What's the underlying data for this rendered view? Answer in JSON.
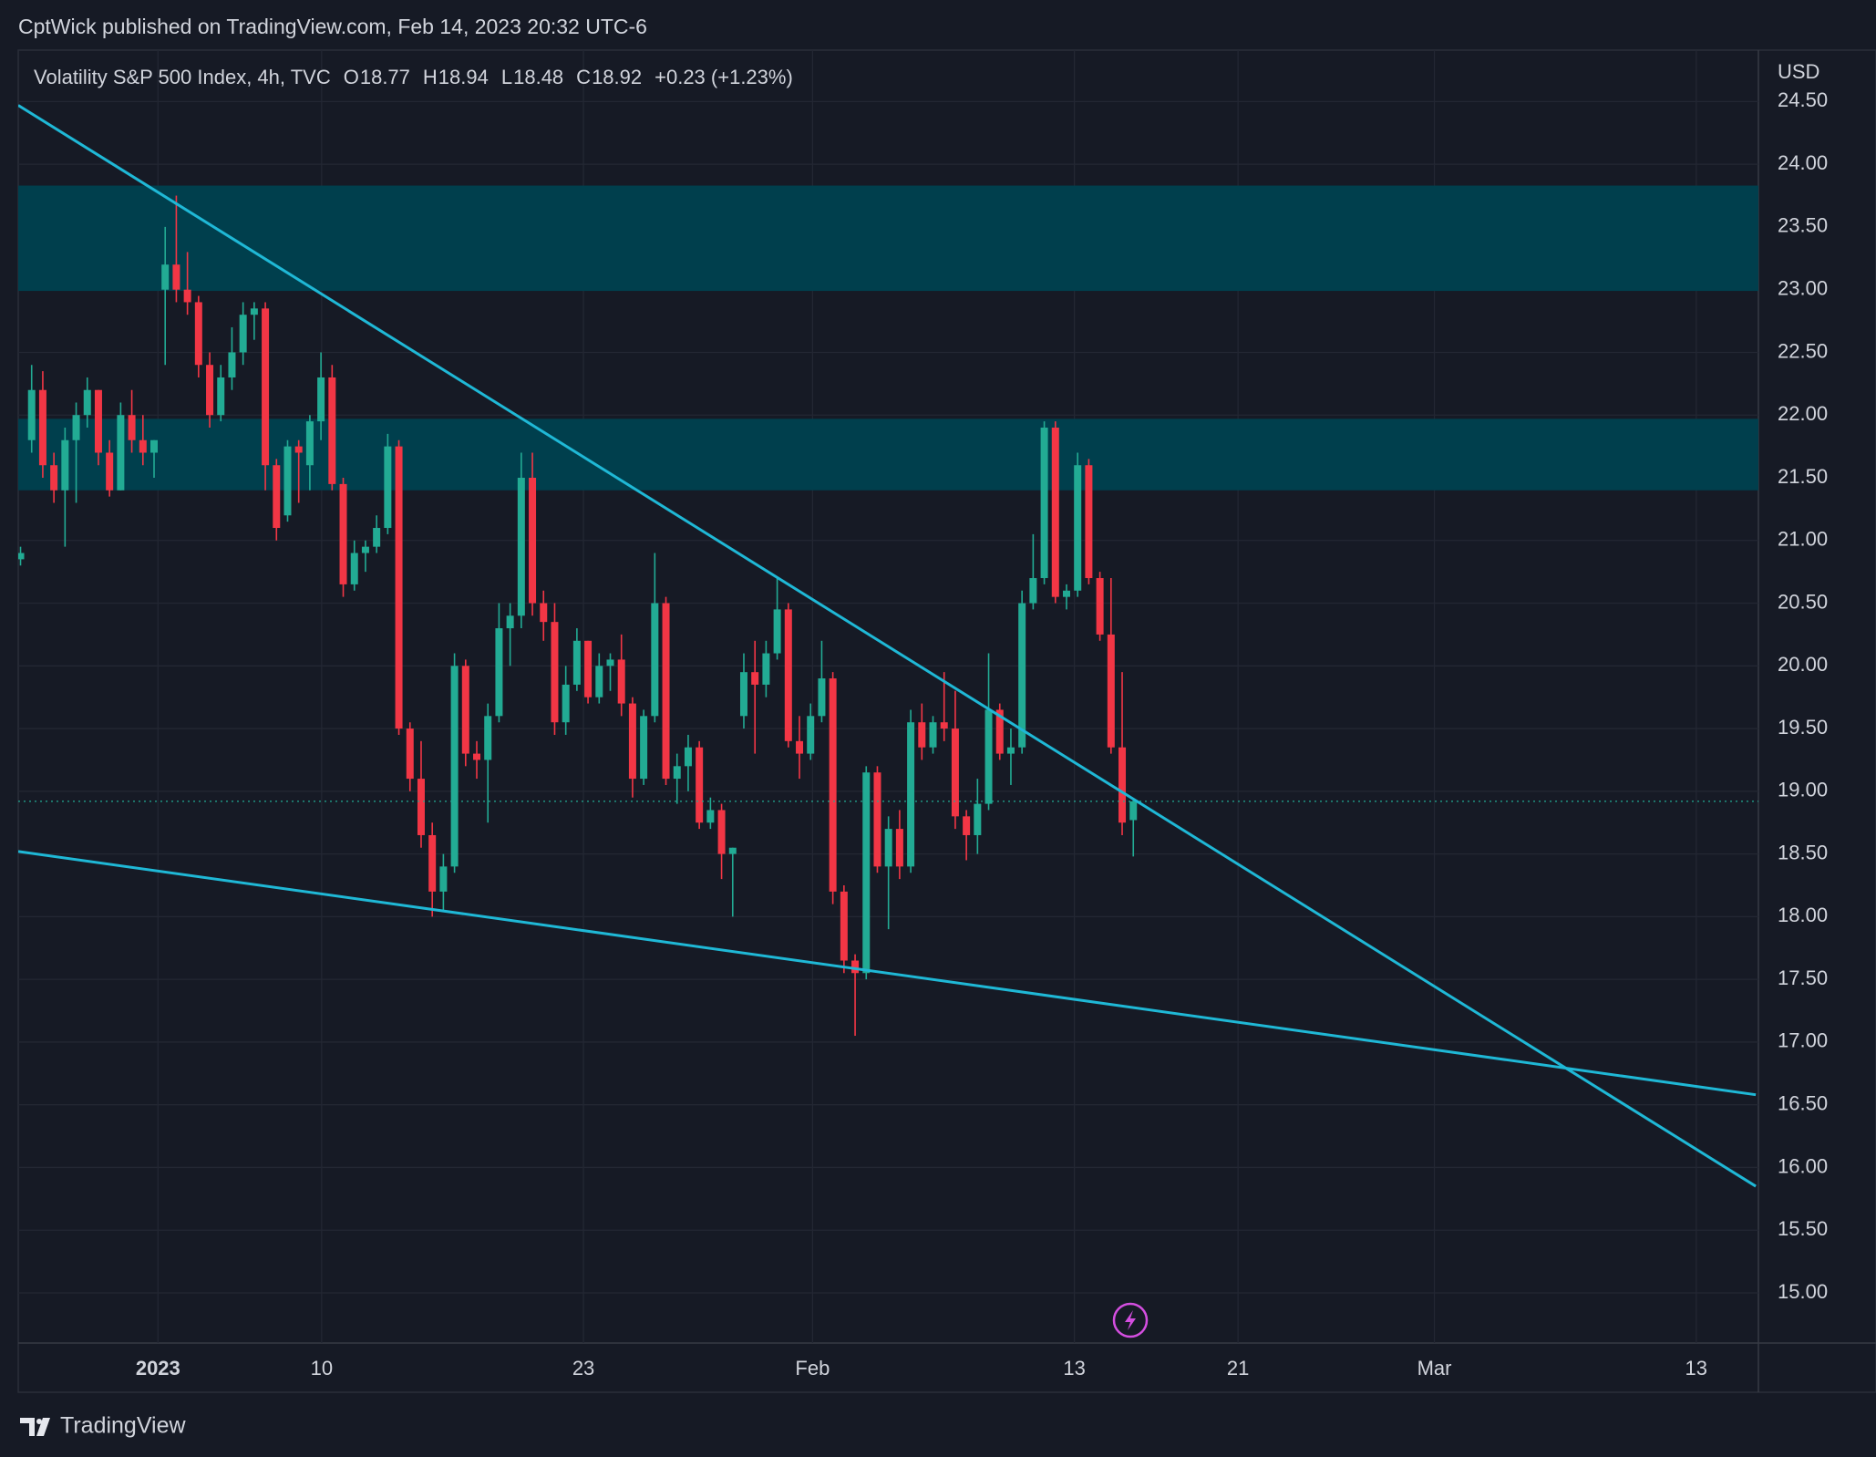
{
  "header": "CptWick published on TradingView.com, Feb 14, 2023 20:32 UTC-6",
  "footer": "TradingView",
  "chart_data": {
    "type": "candlestick",
    "legend": {
      "name": "Volatility S&P 500 Index, 4h, TVC",
      "fields": [
        {
          "label": "O",
          "value": 18.77
        },
        {
          "label": "H",
          "value": 18.94
        },
        {
          "label": "L",
          "value": 18.48
        },
        {
          "label": "C",
          "value": 18.92
        }
      ],
      "change": "+0.23 (+1.23%)"
    },
    "y_axis_label": "USD",
    "up_color": "#22ab94",
    "down_color": "#f23645",
    "xlim": [
      -4.27,
      48.9
    ],
    "ylim": [
      14.6,
      24.91
    ],
    "xticks": [
      {
        "value": 0,
        "label": "2023"
      },
      {
        "value": 5,
        "label": "10"
      },
      {
        "value": 13,
        "label": "23"
      },
      {
        "value": 20,
        "label": "Feb"
      },
      {
        "value": 28,
        "label": "13"
      },
      {
        "value": 33,
        "label": "21"
      },
      {
        "value": 39,
        "label": "Mar"
      },
      {
        "value": 47,
        "label": "13"
      }
    ],
    "yticks": [
      {
        "value": 15,
        "label": "15.00"
      },
      {
        "value": 15.5,
        "label": "15.50"
      },
      {
        "value": 16,
        "label": "16.00"
      },
      {
        "value": 16.5,
        "label": "16.50"
      },
      {
        "value": 17,
        "label": "17.00"
      },
      {
        "value": 17.5,
        "label": "17.50"
      },
      {
        "value": 18,
        "label": "18.00"
      },
      {
        "value": 18.5,
        "label": "18.50"
      },
      {
        "value": 19,
        "label": "19.00"
      },
      {
        "value": 19.5,
        "label": "19.50"
      },
      {
        "value": 20,
        "label": "20.00"
      },
      {
        "value": 20.5,
        "label": "20.50"
      },
      {
        "value": 21,
        "label": "21.00"
      },
      {
        "value": 21.5,
        "label": "21.50"
      },
      {
        "value": 22,
        "label": "22.00"
      },
      {
        "value": 22.5,
        "label": "22.50"
      },
      {
        "value": 23,
        "label": "23.00"
      },
      {
        "value": 23.5,
        "label": "23.50"
      },
      {
        "value": 24,
        "label": "24.00"
      },
      {
        "value": 24.5,
        "label": "24.50"
      }
    ],
    "grid": true,
    "zones": [
      {
        "color": "#003f4d",
        "y": [
          22.99,
          23.83
        ]
      },
      {
        "color": "#003f4d",
        "y": [
          21.4,
          21.97
        ]
      }
    ],
    "lines": [
      {
        "color": "#1fb8d6",
        "x": [
          -4.27,
          48.82
        ],
        "y": [
          24.47,
          15.85
        ]
      },
      {
        "color": "#1fb8d6",
        "x": [
          -4.27,
          48.82
        ],
        "y": [
          18.52,
          16.58
        ]
      }
    ],
    "series": [
      {
        "x": [
          -4.2,
          -3.86,
          -3.52,
          -3.18,
          -2.84,
          -2.5,
          -2.16,
          -1.82,
          -1.48,
          -1.14,
          -0.8,
          -0.46,
          -0.12,
          0.22,
          0.56,
          0.9,
          1.24,
          1.58,
          1.92,
          2.26,
          2.6,
          2.94,
          3.28,
          3.62,
          3.96,
          4.3,
          4.64,
          4.98,
          5.32,
          5.66,
          6.0,
          6.34,
          6.68,
          7.02,
          7.36,
          7.7,
          8.04,
          8.38,
          8.72,
          9.06,
          9.4,
          9.74,
          10.08,
          10.42,
          10.76,
          11.1,
          11.44,
          11.78,
          12.12,
          12.46,
          12.8,
          13.14,
          13.48,
          13.82,
          14.16,
          14.5,
          14.84,
          15.18,
          15.52,
          15.86,
          16.2,
          16.54,
          16.88,
          17.22,
          17.56,
          17.9,
          18.24,
          18.58,
          18.92,
          19.26,
          19.6,
          19.94,
          20.28,
          20.62,
          20.96,
          21.3,
          21.64,
          21.98,
          22.32,
          22.66,
          23.0,
          23.34,
          23.68,
          24.02,
          24.36,
          24.7,
          25.04,
          25.38,
          25.72,
          26.06,
          26.4,
          26.74,
          27.08,
          27.42,
          27.76,
          28.1,
          28.44,
          28.78,
          29.12,
          29.46,
          29.8
        ],
        "open": [
          20.85,
          21.8,
          22.2,
          21.6,
          21.4,
          21.8,
          22.0,
          22.2,
          21.7,
          21.4,
          22.0,
          21.8,
          21.7,
          23.0,
          23.2,
          23.0,
          22.9,
          22.4,
          22.0,
          22.3,
          22.5,
          22.8,
          22.85,
          21.6,
          21.2,
          21.75,
          21.6,
          21.95,
          22.3,
          21.45,
          20.65,
          20.9,
          20.95,
          21.1,
          21.75,
          19.5,
          19.1,
          18.65,
          18.2,
          18.4,
          20.0,
          19.3,
          19.25,
          19.6,
          20.3,
          20.4,
          21.5,
          20.5,
          20.35,
          19.55,
          19.85,
          20.2,
          19.75,
          20.0,
          20.05,
          19.7,
          19.1,
          19.6,
          20.5,
          19.1,
          19.2,
          19.35,
          18.75,
          18.85,
          18.5,
          19.6,
          19.95,
          19.85,
          20.1,
          20.45,
          19.4,
          19.3,
          19.6,
          19.9,
          18.2,
          17.65,
          17.55,
          19.15,
          18.4,
          18.7,
          18.4,
          19.55,
          19.35,
          19.55,
          19.5,
          18.8,
          18.65,
          18.9,
          19.65,
          19.3,
          19.35,
          20.5,
          20.7,
          21.9,
          20.55,
          20.6,
          21.6,
          20.7,
          20.25,
          19.35,
          18.77
        ],
        "high": [
          20.95,
          22.4,
          22.35,
          21.7,
          21.9,
          22.1,
          22.3,
          22.2,
          21.8,
          22.1,
          22.2,
          22.0,
          21.8,
          23.5,
          23.75,
          23.3,
          22.95,
          22.5,
          22.4,
          22.7,
          22.9,
          22.9,
          22.9,
          21.65,
          21.8,
          21.8,
          22.0,
          22.5,
          22.4,
          21.5,
          21.0,
          21.0,
          21.2,
          21.85,
          21.8,
          19.55,
          19.4,
          18.75,
          18.5,
          20.1,
          20.05,
          19.4,
          19.7,
          20.5,
          20.5,
          21.7,
          21.7,
          20.6,
          20.5,
          20.0,
          20.3,
          20.2,
          20.1,
          20.1,
          20.25,
          19.75,
          19.65,
          20.9,
          20.55,
          19.3,
          19.45,
          19.4,
          18.95,
          18.9,
          18.55,
          20.1,
          20.2,
          20.2,
          20.7,
          20.5,
          19.6,
          19.7,
          20.2,
          19.95,
          18.25,
          17.7,
          19.2,
          19.2,
          18.8,
          18.85,
          19.65,
          19.7,
          19.6,
          19.95,
          19.8,
          18.85,
          19.1,
          20.1,
          19.7,
          19.5,
          20.6,
          21.05,
          21.95,
          21.95,
          20.65,
          21.7,
          21.65,
          20.75,
          20.7,
          19.95,
          18.94
        ],
        "low": [
          20.8,
          21.7,
          21.5,
          21.3,
          20.95,
          21.3,
          21.9,
          21.6,
          21.35,
          21.4,
          21.7,
          21.6,
          21.5,
          22.4,
          22.9,
          22.8,
          22.3,
          21.9,
          21.95,
          22.2,
          22.4,
          22.6,
          21.4,
          21.0,
          21.15,
          21.3,
          21.4,
          21.8,
          21.4,
          20.55,
          20.6,
          20.75,
          20.9,
          21.05,
          19.45,
          19.0,
          18.55,
          18.0,
          18.05,
          18.35,
          19.2,
          19.1,
          18.75,
          19.55,
          20.0,
          20.3,
          20.4,
          20.2,
          19.45,
          19.45,
          19.8,
          19.7,
          19.7,
          19.8,
          19.6,
          18.95,
          19.05,
          19.55,
          19.05,
          18.9,
          19.0,
          18.7,
          18.7,
          18.3,
          18.0,
          19.5,
          19.3,
          19.75,
          20.05,
          19.35,
          19.1,
          19.25,
          19.55,
          18.1,
          17.55,
          17.05,
          17.5,
          18.35,
          17.9,
          18.3,
          18.35,
          19.25,
          19.3,
          19.4,
          18.7,
          18.45,
          18.5,
          18.85,
          19.25,
          19.05,
          19.3,
          20.45,
          20.65,
          20.5,
          20.45,
          20.55,
          20.65,
          20.2,
          19.3,
          18.65,
          18.48
        ],
        "close": [
          20.9,
          22.2,
          21.6,
          21.4,
          21.8,
          22.0,
          22.2,
          21.7,
          21.4,
          22.0,
          21.8,
          21.7,
          21.8,
          23.2,
          23.0,
          22.9,
          22.4,
          22.0,
          22.3,
          22.5,
          22.8,
          22.85,
          21.6,
          21.1,
          21.75,
          21.7,
          21.95,
          22.3,
          21.45,
          20.65,
          20.9,
          20.95,
          21.1,
          21.75,
          19.5,
          19.1,
          18.65,
          18.2,
          18.4,
          20.0,
          19.3,
          19.25,
          19.6,
          20.3,
          20.4,
          21.5,
          20.5,
          20.35,
          19.55,
          19.85,
          20.2,
          19.75,
          20.0,
          20.05,
          19.7,
          19.1,
          19.6,
          20.5,
          19.1,
          19.2,
          19.35,
          18.75,
          18.85,
          18.5,
          18.55,
          19.95,
          19.85,
          20.1,
          20.45,
          19.4,
          19.3,
          19.6,
          19.9,
          18.2,
          17.65,
          17.55,
          19.15,
          18.4,
          18.7,
          18.4,
          19.55,
          19.35,
          19.55,
          19.5,
          18.8,
          18.65,
          18.9,
          19.65,
          19.3,
          19.35,
          20.5,
          20.7,
          21.9,
          20.55,
          20.6,
          21.6,
          20.7,
          20.25,
          19.35,
          18.75,
          18.92
        ]
      }
    ]
  }
}
